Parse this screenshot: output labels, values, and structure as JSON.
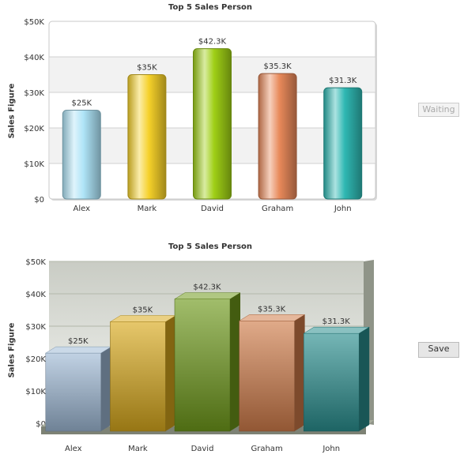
{
  "chart_data": [
    {
      "type": "bar",
      "style": "2d",
      "title": "Top 5 Sales Person",
      "ylabel": "Sales Figure",
      "xlabel": "",
      "categories": [
        "Alex",
        "Mark",
        "David",
        "Graham",
        "John"
      ],
      "values": [
        25000,
        35000,
        42300,
        35300,
        31300
      ],
      "data_labels": [
        "$25K",
        "$35K",
        "$42.3K",
        "$35.3K",
        "$31.3K"
      ],
      "yticks": [
        "$0",
        "$10K",
        "$20K",
        "$30K",
        "$40K",
        "$50K"
      ],
      "ylim": [
        0,
        50000
      ],
      "grid": true,
      "colors": [
        "#aee4f7",
        "#f6d12a",
        "#9fcf16",
        "#e8895a",
        "#2fb8b3"
      ]
    },
    {
      "type": "bar",
      "style": "3d",
      "title": "Top 5 Sales Person",
      "ylabel": "Sales Figure",
      "xlabel": "",
      "categories": [
        "Alex",
        "Mark",
        "David",
        "Graham",
        "John"
      ],
      "values": [
        25000,
        35000,
        42300,
        35300,
        31300
      ],
      "data_labels": [
        "$25K",
        "$35K",
        "$42.3K",
        "$35.3K",
        "$31.3K"
      ],
      "yticks": [
        "$0",
        "$10K",
        "$20K",
        "$30K",
        "$40K",
        "$50K"
      ],
      "ylim": [
        0,
        50000
      ],
      "grid": true,
      "colors": [
        "#9fb9d6",
        "#d8a91c",
        "#6f9a1b",
        "#d07c4a",
        "#2a8f8f"
      ]
    }
  ],
  "buttons": {
    "waiting": "Waiting",
    "save": "Save"
  }
}
